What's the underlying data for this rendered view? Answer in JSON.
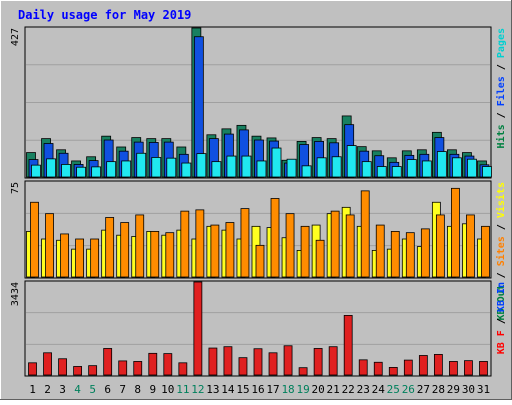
{
  "chart_data": {
    "type": "bar",
    "title": "Daily usage for May 2019",
    "categories": [
      "1",
      "2",
      "3",
      "4",
      "5",
      "6",
      "7",
      "8",
      "9",
      "10",
      "11",
      "12",
      "13",
      "14",
      "15",
      "16",
      "17",
      "18",
      "19",
      "20",
      "21",
      "22",
      "23",
      "24",
      "25",
      "26",
      "27",
      "28",
      "29",
      "30",
      "31"
    ],
    "weekend_days": [
      4,
      5,
      11,
      12,
      18,
      19,
      25,
      26
    ],
    "panels": [
      {
        "id": "top",
        "ymax_label": "427",
        "ylim": [
          0,
          427
        ],
        "legend": [
          {
            "label": "Pages",
            "color": "#00d0d0"
          },
          {
            "label": "Files",
            "color": "#0040ff"
          },
          {
            "label": "Hits",
            "color": "#008040"
          }
        ],
        "series": [
          {
            "name": "Hits",
            "color": "#188060",
            "values": [
              70,
              110,
              78,
              46,
              58,
              117,
              86,
              113,
              110,
              110,
              86,
              427,
              121,
              138,
              148,
              117,
              112,
              48,
              102,
              113,
              110,
              175,
              87,
              75,
              55,
              75,
              78,
              128,
              78,
              70,
              46
            ]
          },
          {
            "name": "Files",
            "color": "#1050e0",
            "values": [
              50,
              96,
              68,
              36,
              47,
              106,
              74,
              100,
              99,
              100,
              65,
              402,
              110,
              123,
              135,
              106,
              103,
              40,
              93,
              102,
              98,
              150,
              74,
              61,
              42,
              62,
              65,
              113,
              65,
              60,
              35
            ]
          },
          {
            "name": "Pages",
            "color": "#20e8f0",
            "values": [
              34,
              52,
              36,
              28,
              29,
              44,
              46,
              68,
              56,
              54,
              40,
              67,
              44,
              60,
              60,
              46,
              83,
              51,
              32,
              55,
              58,
              90,
              44,
              30,
              30,
              50,
              46,
              73,
              55,
              51,
              30
            ]
          }
        ]
      },
      {
        "id": "middle",
        "ymax_label": "75",
        "ylim": [
          0,
          75
        ],
        "legend": [
          {
            "label": "Visits",
            "color": "#ffff00"
          },
          {
            "label": "Sites",
            "color": "#ff8000"
          },
          {
            "label": "KB Out",
            "color": "#008040"
          }
        ],
        "series": [
          {
            "name": "Visits",
            "color": "#ffff20",
            "values": [
              36,
              30,
              29,
              22,
              22,
              37,
              33,
              32,
              36,
              33,
              37,
              30,
              40,
              37,
              30,
              40,
              39,
              31,
              21,
              41,
              50,
              55,
              40,
              21,
              22,
              30,
              24,
              59,
              40,
              42,
              30
            ]
          },
          {
            "name": "Sites",
            "color": "#ff8c00",
            "values": [
              59,
              50,
              34,
              30,
              30,
              47,
              43,
              49,
              36,
              35,
              52,
              53,
              41,
              43,
              54,
              25,
              62,
              50,
              40,
              29,
              52,
              49,
              68,
              41,
              36,
              35,
              38,
              49,
              70,
              49,
              40
            ]
          }
        ]
      },
      {
        "id": "bottom",
        "ymax_label": "3434",
        "ylim": [
          0,
          3434
        ],
        "legend": [
          {
            "label": "KB In",
            "color": "#0040ff"
          },
          {
            "label": "KB F",
            "color": "#ff0000"
          }
        ],
        "series": [
          {
            "name": "KB F",
            "color": "#e02020",
            "values": [
              450,
              820,
              600,
              315,
              345,
              980,
              520,
              500,
              800,
              790,
              450,
              3434,
              995,
              1045,
              640,
              970,
              820,
              1080,
              270,
              980,
              1045,
              2200,
              560,
              470,
              280,
              550,
              720,
              760,
              500,
              530,
              500
            ]
          }
        ]
      }
    ]
  },
  "colors": {
    "background": "#c0c0c0",
    "plot_background": "#c0c0c0",
    "grid": "#a0a0a0",
    "title": "#0000ff",
    "weekday_label": "#000000",
    "weekend_label": "#00805c"
  }
}
